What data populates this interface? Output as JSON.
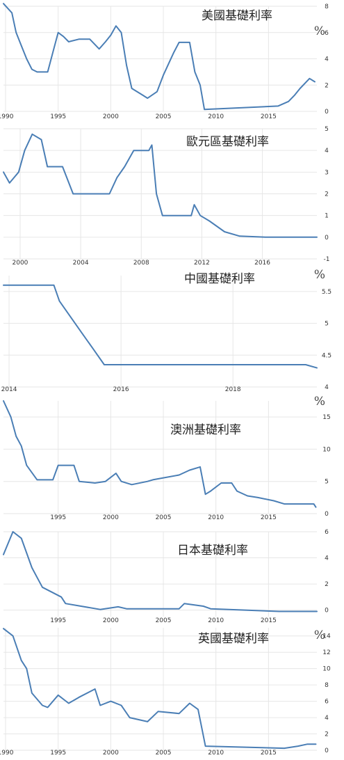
{
  "colors": {
    "line": "#4a7eb5",
    "grid": "#e6e6e6",
    "text": "#333333"
  },
  "chart_data": [
    {
      "type": "line",
      "title": "美國基礎利率",
      "unit": "%",
      "xlim": [
        1989.8,
        2019.6
      ],
      "ylim": [
        0,
        8
      ],
      "xticks": [
        1990,
        1995,
        2000,
        2005,
        2010,
        2015
      ],
      "yticks": [
        0,
        2,
        4,
        6,
        8
      ],
      "series": [
        {
          "x": [
            1989.8,
            1990.6,
            1991.0,
            1991.5,
            1992.0,
            1992.5,
            1993.0,
            1994.0,
            1994.5,
            1995.0,
            1995.5,
            1996.0,
            1997.0,
            1998.0,
            1998.9,
            1999.5,
            2000.0,
            2000.5,
            2001.0,
            2001.5,
            2002.0,
            2003.0,
            2003.5,
            2004.4,
            2005.0,
            2006.0,
            2006.5,
            2007.5,
            2008.0,
            2008.5,
            2008.9,
            2015.9,
            2016.9,
            2017.5,
            2018.0,
            2018.9,
            2019.4
          ],
          "y": [
            8.2,
            7.5,
            6.0,
            5.0,
            4.0,
            3.2,
            3.0,
            3.0,
            4.5,
            6.0,
            5.7,
            5.3,
            5.5,
            5.5,
            4.75,
            5.3,
            5.8,
            6.5,
            6.0,
            3.5,
            1.75,
            1.25,
            1.0,
            1.5,
            2.75,
            4.5,
            5.25,
            5.25,
            3.0,
            2.0,
            0.15,
            0.4,
            0.75,
            1.25,
            1.75,
            2.5,
            2.25
          ]
        }
      ]
    },
    {
      "type": "line",
      "title": "歐元區基礎利率",
      "unit": "",
      "xlim": [
        1998.9,
        2019.6
      ],
      "ylim": [
        -1,
        5
      ],
      "xticks": [
        2000,
        2004,
        2008,
        2012,
        2016
      ],
      "yticks": [
        -1,
        0,
        1,
        2,
        3,
        4,
        5
      ],
      "series": [
        {
          "x": [
            1998.9,
            1999.3,
            1999.9,
            2000.3,
            2000.8,
            2001.4,
            2001.8,
            2002.8,
            2003.5,
            2005.9,
            2006.4,
            2006.9,
            2007.5,
            2008.5,
            2008.7,
            2009.0,
            2009.4,
            2011.3,
            2011.5,
            2011.9,
            2012.5,
            2013.5,
            2014.5,
            2016.2,
            2019.6
          ],
          "y": [
            3.0,
            2.5,
            3.0,
            4.0,
            4.75,
            4.5,
            3.25,
            3.25,
            2.0,
            2.0,
            2.75,
            3.25,
            4.0,
            4.0,
            4.25,
            2.0,
            1.0,
            1.0,
            1.5,
            1.0,
            0.75,
            0.25,
            0.05,
            0.0,
            0.0
          ]
        }
      ]
    },
    {
      "type": "line",
      "title": "中國基礎利率",
      "unit": "%",
      "xlim": [
        2013.9,
        2019.5
      ],
      "ylim": [
        4,
        5.75
      ],
      "xticks": [
        2014,
        2016,
        2018
      ],
      "yticks": [
        4,
        4.5,
        5,
        5.5
      ],
      "series": [
        {
          "x": [
            2013.9,
            2014.3,
            2014.8,
            2014.9,
            2015.1,
            2015.3,
            2015.5,
            2015.7,
            2015.8,
            2019.3,
            2019.5
          ],
          "y": [
            5.6,
            5.6,
            5.6,
            5.35,
            5.1,
            4.85,
            4.6,
            4.35,
            4.35,
            4.35,
            4.3
          ]
        }
      ]
    },
    {
      "type": "line",
      "title": "澳洲基礎利率",
      "unit": "%",
      "xlim": [
        1989.8,
        2019.6
      ],
      "ylim": [
        0,
        17.5
      ],
      "xticks": [
        1995,
        2000,
        2005,
        2010,
        2015
      ],
      "yticks": [
        0,
        5,
        10,
        15
      ],
      "series": [
        {
          "x": [
            1989.8,
            1990.5,
            1991.0,
            1991.5,
            1992.0,
            1993.0,
            1994.5,
            1995.0,
            1996.5,
            1997.0,
            1998.5,
            1999.5,
            2000.5,
            2001.0,
            2002.0,
            2003.5,
            2004.0,
            2006.5,
            2007.5,
            2008.5,
            2009.0,
            2009.5,
            2010.5,
            2011.5,
            2012.0,
            2013.0,
            2014.0,
            2015.5,
            2016.5,
            2019.3,
            2019.5
          ],
          "y": [
            17.5,
            15.0,
            12.0,
            10.5,
            7.5,
            5.25,
            5.25,
            7.5,
            7.5,
            5.0,
            4.75,
            5.0,
            6.25,
            5.0,
            4.5,
            5.0,
            5.25,
            6.0,
            6.75,
            7.25,
            3.0,
            3.5,
            4.75,
            4.75,
            3.5,
            2.75,
            2.5,
            2.0,
            1.5,
            1.5,
            1.0
          ]
        }
      ]
    },
    {
      "type": "line",
      "title": "日本基礎利率",
      "unit": "",
      "xlim": [
        1989.8,
        2019.6
      ],
      "ylim": [
        -0.5,
        6
      ],
      "xticks": [
        1995,
        2000,
        2005,
        2010,
        2015
      ],
      "yticks": [
        0,
        2,
        4,
        6
      ],
      "series": [
        {
          "x": [
            1989.8,
            1990.7,
            1991.5,
            1992.5,
            1993.0,
            1993.5,
            1995.3,
            1995.7,
            1999.0,
            2000.7,
            2001.5,
            2006.5,
            2007.0,
            2008.8,
            2009.5,
            2016.0,
            2019.6
          ],
          "y": [
            4.25,
            6.0,
            5.5,
            3.25,
            2.5,
            1.75,
            1.0,
            0.5,
            0.05,
            0.25,
            0.1,
            0.1,
            0.5,
            0.3,
            0.1,
            -0.1,
            -0.1
          ]
        }
      ]
    },
    {
      "type": "line",
      "title": "英國基礎利率",
      "unit": "%",
      "xlim": [
        1989.8,
        2019.6
      ],
      "ylim": [
        0,
        15
      ],
      "xticks": [
        1990,
        1995,
        2000,
        2005,
        2010,
        2015
      ],
      "yticks": [
        0,
        2,
        4,
        6,
        8,
        10,
        12,
        14
      ],
      "series": [
        {
          "x": [
            1989.8,
            1990.7,
            1991.5,
            1992.0,
            1992.5,
            1993.5,
            1994.0,
            1995.0,
            1996.0,
            1997.0,
            1998.5,
            1999.0,
            2000.0,
            2001.0,
            2001.8,
            2003.5,
            2004.5,
            2006.5,
            2007.5,
            2008.3,
            2009.0,
            2016.5,
            2017.8,
            2018.7,
            2019.5
          ],
          "y": [
            14.9,
            14.0,
            11.0,
            10.0,
            7.0,
            5.5,
            5.25,
            6.75,
            5.75,
            6.5,
            7.5,
            5.5,
            6.0,
            5.5,
            4.0,
            3.5,
            4.75,
            4.5,
            5.75,
            5.0,
            0.5,
            0.25,
            0.5,
            0.75,
            0.75
          ]
        }
      ]
    }
  ]
}
